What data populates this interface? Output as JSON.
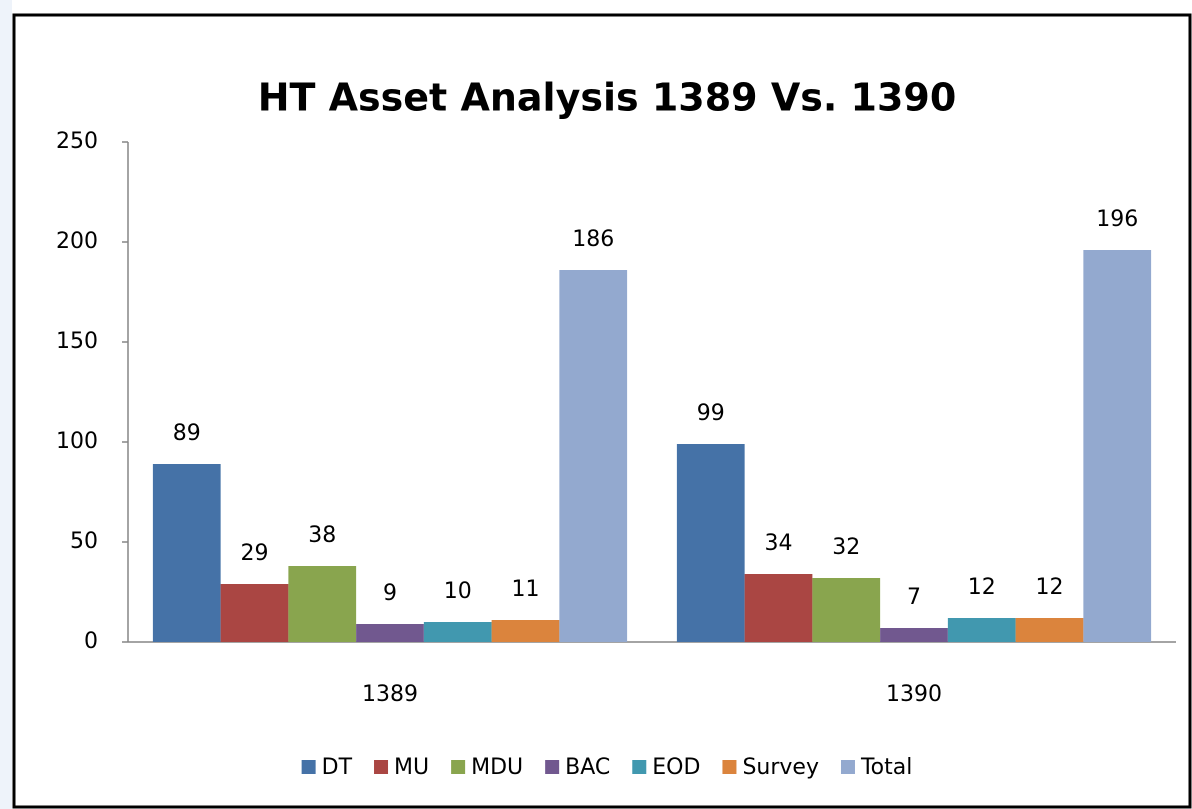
{
  "chart_data": {
    "type": "bar",
    "title": "HT Asset Analysis 1389 Vs. 1390",
    "categories": [
      "1389",
      "1390"
    ],
    "series": [
      {
        "name": "DT",
        "color": "#4572a7",
        "values": [
          89,
          99
        ]
      },
      {
        "name": "MU",
        "color": "#aa4643",
        "values": [
          29,
          34
        ]
      },
      {
        "name": "MDU",
        "color": "#89a54e",
        "values": [
          38,
          32
        ]
      },
      {
        "name": "BAC",
        "color": "#71588f",
        "values": [
          9,
          7
        ]
      },
      {
        "name": "EOD",
        "color": "#4198af",
        "values": [
          10,
          12
        ]
      },
      {
        "name": "Survey",
        "color": "#db843d",
        "values": [
          11,
          12
        ]
      },
      {
        "name": "Total",
        "color": "#93a9cf",
        "values": [
          186,
          196
        ]
      }
    ],
    "ylim": [
      0,
      250
    ],
    "yticks": [
      0,
      50,
      100,
      150,
      200,
      250
    ],
    "grid": false,
    "legend": "bottom"
  }
}
